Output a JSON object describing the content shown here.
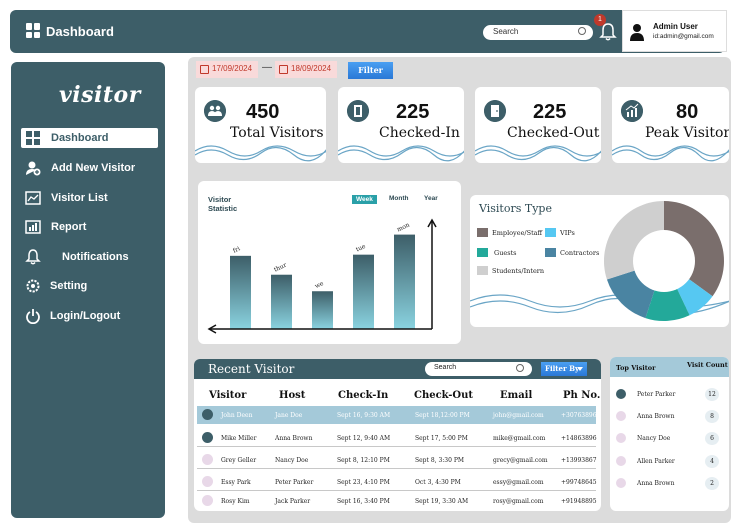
{
  "header": {
    "title": "Dashboard",
    "search_label": "Search",
    "notification_count": "1",
    "user_name": "Admin User",
    "user_email": "id:admin@gmail.com"
  },
  "sidebar": {
    "logo": "visitor",
    "items": [
      {
        "label": "Dashboard",
        "icon": "grid-icon"
      },
      {
        "label": "Add New Visitor",
        "icon": "add-user-icon"
      },
      {
        "label": "Visitor List",
        "icon": "list-icon"
      },
      {
        "label": "Report",
        "icon": "report-icon"
      },
      {
        "label": "Notifications",
        "icon": "bell-icon"
      },
      {
        "label": "Setting",
        "icon": "gear-icon"
      },
      {
        "label": "Login/Logout",
        "icon": "power-icon"
      }
    ]
  },
  "filters": {
    "date_from": "17/09/2024",
    "separator": "—",
    "date_to": "18/09/2024",
    "filter_label": "Filter"
  },
  "stats": [
    {
      "value": "450",
      "label": "Total Visitors",
      "icon": "people-icon"
    },
    {
      "value": "225",
      "label": "Checked-In",
      "icon": "door-open-icon"
    },
    {
      "value": "225",
      "label": "Checked-Out",
      "icon": "door-closed-icon"
    },
    {
      "value": "80",
      "label": "Peak Visitor",
      "icon": "chart-up-icon"
    }
  ],
  "chart_data": [
    {
      "type": "bar",
      "title": "Visitor Statistic",
      "tabs": [
        "Week",
        "Month",
        "Year"
      ],
      "active_tab": "Week",
      "categories": [
        "fri",
        "thur",
        "we",
        "tue",
        "mon"
      ],
      "values": [
        62,
        46,
        32,
        63,
        80
      ],
      "ylim": [
        0,
        100
      ],
      "colors": {
        "top": "#3d5e68",
        "bottom": "#8ad3e0"
      }
    },
    {
      "type": "pie",
      "title": "Visitors Type",
      "categories": [
        "Employee/Staff",
        "VIPs",
        "Guests",
        "Contractors",
        "Students/Intern"
      ],
      "values": [
        35,
        8,
        12,
        15,
        30
      ],
      "colors": [
        "#7a6e6c",
        "#56c8f2",
        "#23a99a",
        "#4a84a2",
        "#cfcfcf"
      ]
    }
  ],
  "recent": {
    "title": "Recent Visitor",
    "search_label": "Search",
    "filter_label": "Filter By",
    "columns": [
      "Visitor",
      "Host",
      "Check-In",
      "Check-Out",
      "Email",
      "Ph No."
    ],
    "rows": [
      {
        "visitor": "John Deen",
        "host": "Jane Doe",
        "in": "Sept 16, 9:30 AM",
        "out": "Sept 18,12:00 PM",
        "email": "john@gmail.com",
        "phone": "+30763896"
      },
      {
        "visitor": "Mike Miller",
        "host": "Anna Brown",
        "in": "Sept 12, 9:40 AM",
        "out": "Sept 17, 5:00 PM",
        "email": "mike@gmail.com",
        "phone": "+14863896"
      },
      {
        "visitor": "Grey Geller",
        "host": "Nancy Doe",
        "in": "Sept 8, 12:10 PM",
        "out": "Sept 8, 3:30 PM",
        "email": "grecy@gmail.com",
        "phone": "+13993867"
      },
      {
        "visitor": "Essy Park",
        "host": "Peter Parker",
        "in": "Sept 23, 4:10 PM",
        "out": "Oct 3, 4:30 PM",
        "email": "essy@gmail.com",
        "phone": "+99748645"
      },
      {
        "visitor": "Rosy Kim",
        "host": "Jack Parker",
        "in": "Sept 16, 3:40 PM",
        "out": "Sept 19, 3:30 AM",
        "email": "rosy@gmail.com",
        "phone": "+91948895"
      }
    ]
  },
  "top_visitors": {
    "header_name": "Top Visitor",
    "header_count": "Visit Count",
    "rows": [
      {
        "name": "Peter Parker",
        "count": "12"
      },
      {
        "name": "Anna Brown",
        "count": "8"
      },
      {
        "name": "Nancy Doe",
        "count": "6"
      },
      {
        "name": "Allen Parker",
        "count": "4"
      },
      {
        "name": "Anna Brown",
        "count": "2"
      }
    ]
  }
}
